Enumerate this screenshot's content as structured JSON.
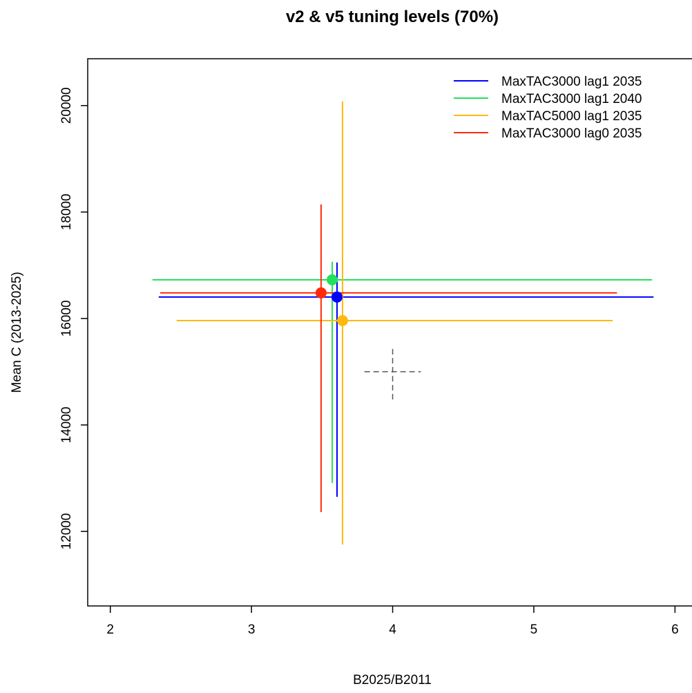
{
  "chart_data": {
    "type": "scatter",
    "title": "v2 & v5 tuning levels (70%)",
    "x_label": "B2025/B2011",
    "y_label": "Mean C (2013-2025)",
    "xlim": [
      1.84,
      6.12
    ],
    "ylim": [
      10600,
      20880
    ],
    "xticks": [
      2,
      3,
      4,
      5,
      6
    ],
    "yticks": [
      12000,
      14000,
      16000,
      18000,
      20000
    ],
    "legend": "top-right",
    "series": [
      {
        "name": "MaxTAC3000 lag1 2035",
        "color": "#0000ff",
        "x": [
          3.606
        ],
        "y": [
          16403
        ],
        "xlow": [
          2.343
        ],
        "xhigh": [
          5.848
        ],
        "ylow": [
          12649
        ],
        "yhigh": [
          17052
        ]
      },
      {
        "name": "MaxTAC3000 lag1 2040",
        "color": "#22e05a",
        "x": [
          3.572
        ],
        "y": [
          16727
        ],
        "xlow": [
          2.299
        ],
        "xhigh": [
          5.838
        ],
        "ylow": [
          12909
        ],
        "yhigh": [
          17065
        ]
      },
      {
        "name": "MaxTAC5000 lag1 2035",
        "color": "#ffb90f",
        "x": [
          3.645
        ],
        "y": [
          15961
        ],
        "xlow": [
          2.47
        ],
        "xhigh": [
          5.559
        ],
        "ylow": [
          11753
        ],
        "yhigh": [
          20078
        ]
      },
      {
        "name": "MaxTAC3000 lag0 2035",
        "color": "#ff2a0a",
        "x": [
          3.493
        ],
        "y": [
          16481
        ],
        "xlow": [
          2.353
        ],
        "xhigh": [
          5.589
        ],
        "ylow": [
          12364
        ],
        "yhigh": [
          18143
        ]
      }
    ],
    "reference": {
      "color": "#555555",
      "x": 4,
      "y": 15000,
      "xrange": [
        3.8,
        4.2
      ],
      "yrange": [
        14480,
        15430
      ]
    }
  }
}
